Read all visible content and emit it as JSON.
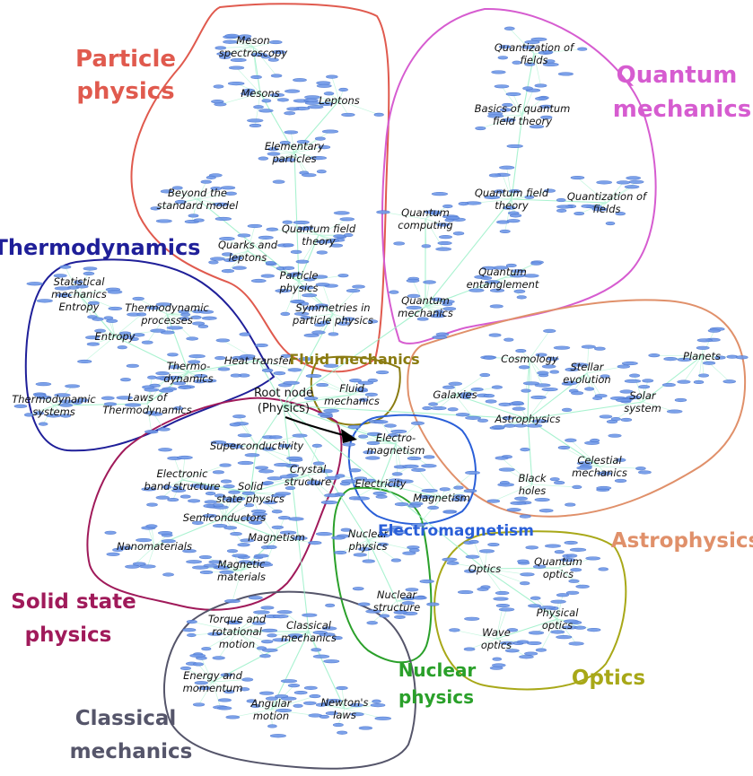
{
  "regions": {
    "particle": {
      "label_lines": [
        "Particle",
        "physics"
      ],
      "color": "#e05a4e"
    },
    "quantum": {
      "label_lines": [
        "Quantum",
        "mechanics"
      ],
      "color": "#d65cd0"
    },
    "thermo": {
      "label_lines": [
        "Thermodynamics"
      ],
      "color": "#1f1f99"
    },
    "fluid": {
      "label_lines": [
        "Fluid mechanics"
      ],
      "color": "#8a7b10"
    },
    "astro": {
      "label_lines": [
        "Astrophysics"
      ],
      "color": "#e0906a"
    },
    "em": {
      "label_lines": [
        "Electromagnetism"
      ],
      "color": "#2a5fd8"
    },
    "solid": {
      "label_lines": [
        "Solid state",
        "physics"
      ],
      "color": "#a01a5a"
    },
    "optics": {
      "label_lines": [
        "Optics"
      ],
      "color": "#a8a818"
    },
    "nuclear": {
      "label_lines": [
        "Nuclear",
        "physics"
      ],
      "color": "#2aa02a"
    },
    "classical": {
      "label_lines": [
        "Classical",
        "mechanics"
      ],
      "color": "#55556a"
    }
  },
  "root": {
    "label_lines": [
      "Root node",
      "(Physics)"
    ]
  },
  "nodes": [
    {
      "id": "meson-spec",
      "lines": [
        "Meson",
        "spectroscopy"
      ],
      "region": "particle"
    },
    {
      "id": "mesons",
      "lines": [
        "Mesons"
      ],
      "region": "particle"
    },
    {
      "id": "leptons",
      "lines": [
        "Leptons"
      ],
      "region": "particle"
    },
    {
      "id": "elementary",
      "lines": [
        "Elementary",
        "particles"
      ],
      "region": "particle"
    },
    {
      "id": "beyond",
      "lines": [
        "Beyond the",
        "standard model"
      ],
      "region": "particle"
    },
    {
      "id": "qft-pp",
      "lines": [
        "Quantum field",
        "theory"
      ],
      "region": "particle"
    },
    {
      "id": "quarks",
      "lines": [
        "Quarks and",
        "leptons"
      ],
      "region": "particle"
    },
    {
      "id": "particle-phys",
      "lines": [
        "Particle",
        "physics"
      ],
      "region": "particle"
    },
    {
      "id": "symmetries",
      "lines": [
        "Symmetries in",
        "particle physics"
      ],
      "region": "particle"
    },
    {
      "id": "quant-fields-1",
      "lines": [
        "Quantization of",
        "fields"
      ],
      "region": "quantum"
    },
    {
      "id": "basics-qft",
      "lines": [
        "Basics of quantum",
        "field theory"
      ],
      "region": "quantum"
    },
    {
      "id": "qft-qm",
      "lines": [
        "Quantum field",
        "theory"
      ],
      "region": "quantum"
    },
    {
      "id": "quant-fields-2",
      "lines": [
        "Quantization of",
        "fields"
      ],
      "region": "quantum"
    },
    {
      "id": "qcomputing",
      "lines": [
        "Quantum",
        "computing"
      ],
      "region": "quantum"
    },
    {
      "id": "qentangle",
      "lines": [
        "Quantum",
        "entanglement"
      ],
      "region": "quantum"
    },
    {
      "id": "qmech",
      "lines": [
        "Quantum",
        "mechanics"
      ],
      "region": "quantum"
    },
    {
      "id": "stat-mech",
      "lines": [
        "Statistical",
        "mechanics",
        "Entropy"
      ],
      "region": "thermo"
    },
    {
      "id": "thermo-proc",
      "lines": [
        "Thermodynamic",
        "processes"
      ],
      "region": "thermo"
    },
    {
      "id": "entropy",
      "lines": [
        "Entropy"
      ],
      "region": "thermo"
    },
    {
      "id": "thermodyn",
      "lines": [
        "Thermo-",
        "dynamics"
      ],
      "region": "thermo"
    },
    {
      "id": "heat",
      "lines": [
        "Heat transfer"
      ],
      "region": "thermo"
    },
    {
      "id": "thermo-sys",
      "lines": [
        "Thermodynamic",
        "systems"
      ],
      "region": "thermo"
    },
    {
      "id": "laws",
      "lines": [
        "Laws of",
        "Thermodynamics"
      ],
      "region": "thermo"
    },
    {
      "id": "fluid",
      "lines": [
        "Fluid",
        "mechanics"
      ],
      "region": "fluid"
    },
    {
      "id": "cosmology",
      "lines": [
        "Cosmology"
      ],
      "region": "astro"
    },
    {
      "id": "stellar",
      "lines": [
        "Stellar",
        "evolution"
      ],
      "region": "astro"
    },
    {
      "id": "planets",
      "lines": [
        "Planets"
      ],
      "region": "astro"
    },
    {
      "id": "galaxies",
      "lines": [
        "Galaxies"
      ],
      "region": "astro"
    },
    {
      "id": "solar",
      "lines": [
        "Solar",
        "system"
      ],
      "region": "astro"
    },
    {
      "id": "astrophys",
      "lines": [
        "Astrophysics"
      ],
      "region": "astro"
    },
    {
      "id": "celestial",
      "lines": [
        "Celestial",
        "mechanics"
      ],
      "region": "astro"
    },
    {
      "id": "blackholes",
      "lines": [
        "Black",
        "holes"
      ],
      "region": "astro"
    },
    {
      "id": "electromag",
      "lines": [
        "Electro-",
        "magnetism"
      ],
      "region": "em"
    },
    {
      "id": "electricity",
      "lines": [
        "Electricity"
      ],
      "region": "em"
    },
    {
      "id": "magnetism-em",
      "lines": [
        "Magnetism"
      ],
      "region": "em"
    },
    {
      "id": "supercond",
      "lines": [
        "Superconductivity"
      ],
      "region": "solid"
    },
    {
      "id": "crystal",
      "lines": [
        "Crystal",
        "structure"
      ],
      "region": "solid"
    },
    {
      "id": "electronic",
      "lines": [
        "Electronic",
        "band structure"
      ],
      "region": "solid"
    },
    {
      "id": "solid-state",
      "lines": [
        "Solid",
        "state physics"
      ],
      "region": "solid"
    },
    {
      "id": "semicond",
      "lines": [
        "Semiconductors"
      ],
      "region": "solid"
    },
    {
      "id": "nanomat",
      "lines": [
        "Nanomaterials"
      ],
      "region": "solid"
    },
    {
      "id": "magnetism-ss",
      "lines": [
        "Magnetism"
      ],
      "region": "solid"
    },
    {
      "id": "magmat",
      "lines": [
        "Magnetic",
        "materials"
      ],
      "region": "solid"
    },
    {
      "id": "nuclear-phys",
      "lines": [
        "Nuclear",
        "physics"
      ],
      "region": "nuclear"
    },
    {
      "id": "nuclear-struct",
      "lines": [
        "Nuclear",
        "structure"
      ],
      "region": "nuclear"
    },
    {
      "id": "optics",
      "lines": [
        "Optics"
      ],
      "region": "optics"
    },
    {
      "id": "quantum-optics",
      "lines": [
        "Quantum",
        "optics"
      ],
      "region": "optics"
    },
    {
      "id": "physical-optics",
      "lines": [
        "Physical",
        "optics"
      ],
      "region": "optics"
    },
    {
      "id": "wave-optics",
      "lines": [
        "Wave",
        "optics"
      ],
      "region": "optics"
    },
    {
      "id": "torque",
      "lines": [
        "Torque and",
        "rotational",
        "motion"
      ],
      "region": "classical"
    },
    {
      "id": "classical-mech",
      "lines": [
        "Classical",
        "mechanics"
      ],
      "region": "classical"
    },
    {
      "id": "energy",
      "lines": [
        "Energy and",
        "momentum"
      ],
      "region": "classical"
    },
    {
      "id": "angular",
      "lines": [
        "Angular",
        "motion"
      ],
      "region": "classical"
    },
    {
      "id": "newton",
      "lines": [
        "Newton's",
        "laws"
      ],
      "region": "classical"
    }
  ],
  "edges": [
    [
      "root",
      "fluid"
    ],
    [
      "root",
      "electromag"
    ],
    [
      "root",
      "supercond"
    ],
    [
      "root",
      "heat"
    ],
    [
      "root",
      "symmetries"
    ],
    [
      "root",
      "qmech"
    ],
    [
      "root",
      "astrophys"
    ],
    [
      "root",
      "nuclear-phys"
    ],
    [
      "root",
      "optics"
    ],
    [
      "root",
      "classical-mech"
    ],
    [
      "meson-spec",
      "mesons"
    ],
    [
      "mesons",
      "elementary"
    ],
    [
      "leptons",
      "elementary"
    ],
    [
      "elementary",
      "particle-phys"
    ],
    [
      "beyond",
      "particle-phys"
    ],
    [
      "qft-pp",
      "particle-phys"
    ],
    [
      "quarks",
      "particle-phys"
    ],
    [
      "particle-phys",
      "symmetries"
    ],
    [
      "quant-fields-1",
      "basics-qft"
    ],
    [
      "basics-qft",
      "qft-qm"
    ],
    [
      "quant-fields-2",
      "qft-qm"
    ],
    [
      "qft-qm",
      "qmech"
    ],
    [
      "qcomputing",
      "qmech"
    ],
    [
      "qentangle",
      "qmech"
    ],
    [
      "stat-mech",
      "entropy"
    ],
    [
      "entropy",
      "thermodyn"
    ],
    [
      "thermo-proc",
      "thermodyn"
    ],
    [
      "thermodyn",
      "heat"
    ],
    [
      "thermo-sys",
      "laws"
    ],
    [
      "laws",
      "thermodyn"
    ],
    [
      "cosmology",
      "astrophys"
    ],
    [
      "stellar",
      "astrophys"
    ],
    [
      "galaxies",
      "astrophys"
    ],
    [
      "solar",
      "astrophys"
    ],
    [
      "planets",
      "solar"
    ],
    [
      "celestial",
      "astrophys"
    ],
    [
      "blackholes",
      "astrophys"
    ],
    [
      "electromag",
      "electricity"
    ],
    [
      "electricity",
      "magnetism-em"
    ],
    [
      "supercond",
      "solid-state"
    ],
    [
      "crystal",
      "solid-state"
    ],
    [
      "electronic",
      "solid-state"
    ],
    [
      "solid-state",
      "semicond"
    ],
    [
      "semicond",
      "nanomat"
    ],
    [
      "semicond",
      "magnetism-ss"
    ],
    [
      "magnetism-ss",
      "magmat"
    ],
    [
      "nuclear-phys",
      "nuclear-struct"
    ],
    [
      "optics",
      "quantum-optics"
    ],
    [
      "optics",
      "physical-optics"
    ],
    [
      "physical-optics",
      "wave-optics"
    ],
    [
      "torque",
      "classical-mech"
    ],
    [
      "energy",
      "classical-mech"
    ],
    [
      "classical-mech",
      "angular"
    ],
    [
      "classical-mech",
      "newton"
    ]
  ]
}
